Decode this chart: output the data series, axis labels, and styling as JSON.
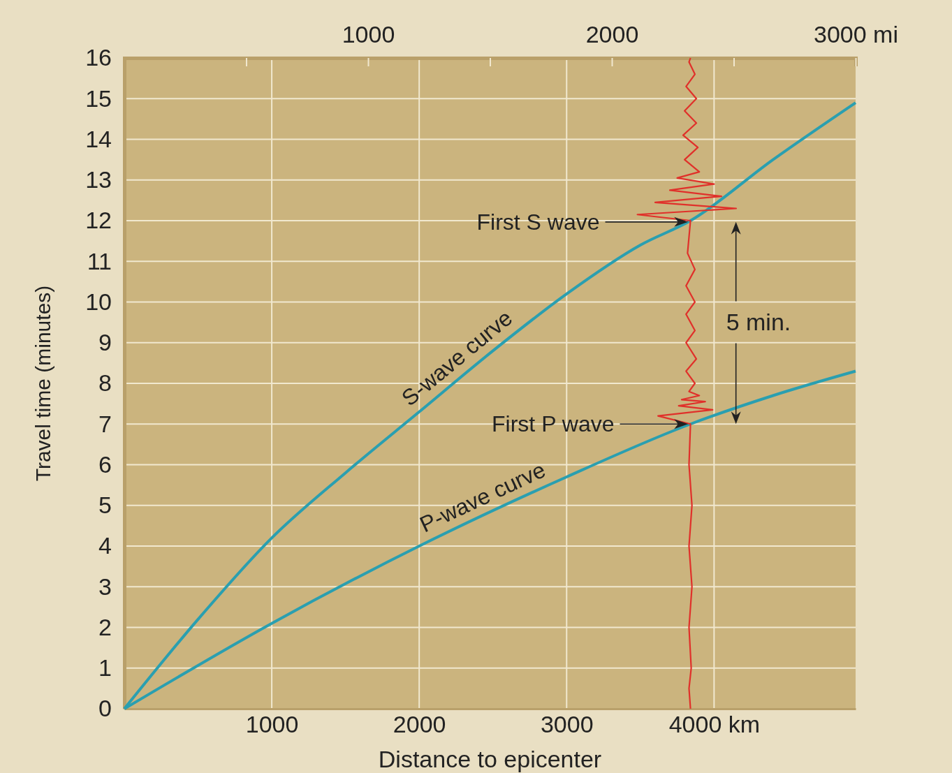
{
  "chart_data": {
    "type": "line",
    "xlabel": "Distance to epicenter",
    "ylabel": "Travel time (minutes)",
    "xlim": [
      0,
      4960
    ],
    "xticks": [
      1000,
      2000,
      3000,
      {
        "value": 4000,
        "label": "4000 km"
      }
    ],
    "x2lim": [
      0,
      3000
    ],
    "x2ticks": [
      {
        "value": 500,
        "label": null
      },
      1000,
      {
        "value": 1500,
        "label": null
      },
      2000,
      {
        "value": 2500,
        "label": null
      },
      {
        "value": 3000,
        "label": "3000 mi"
      }
    ],
    "ylim": [
      0,
      16
    ],
    "yticks": [
      0,
      1,
      2,
      3,
      4,
      5,
      6,
      7,
      8,
      9,
      10,
      11,
      12,
      13,
      14,
      15,
      16
    ],
    "grid": true,
    "marker": "none",
    "line_style": "solid",
    "series": [
      {
        "name": "S-wave curve",
        "color": "#2a9fb0",
        "x": [
          0,
          500,
          1000,
          1500,
          2000,
          2500,
          3000,
          3500,
          3840,
          4400,
          4960
        ],
        "values": [
          0,
          2.2,
          4.2,
          5.8,
          7.3,
          8.8,
          10.2,
          11.4,
          12.0,
          13.5,
          14.9
        ]
      },
      {
        "name": "P-wave curve",
        "color": "#2a9fb0",
        "x": [
          0,
          1000,
          2000,
          3000,
          3840,
          4400,
          4960
        ],
        "values": [
          0,
          2.1,
          4.0,
          5.7,
          7.0,
          7.7,
          8.3
        ]
      },
      {
        "color": "#e0302a",
        "x": [
          3840,
          3830,
          3845,
          3830,
          3850,
          3830,
          3850,
          3830,
          3840,
          3620,
          3990,
          3760,
          3940,
          3780,
          3900,
          3830,
          3870,
          3810,
          3880,
          3810,
          3870,
          3810,
          3870,
          3810,
          3870,
          3820,
          3840,
          3480,
          4150,
          3600,
          4050,
          3700,
          4000,
          3750,
          3900,
          3800,
          3890,
          3790,
          3880,
          3800,
          3880,
          3810,
          3870,
          3830,
          3840
        ],
        "values": [
          0,
          0.5,
          1,
          2,
          3,
          4,
          5,
          6,
          7,
          7.2,
          7.35,
          7.45,
          7.55,
          7.6,
          7.7,
          7.8,
          8,
          8.3,
          8.6,
          9,
          9.3,
          9.7,
          10,
          10.4,
          10.8,
          11.2,
          12,
          12.15,
          12.3,
          12.45,
          12.6,
          12.75,
          12.9,
          13.05,
          13.2,
          13.5,
          13.8,
          14.1,
          14.4,
          14.7,
          15,
          15.3,
          15.6,
          15.9,
          16
        ]
      }
    ],
    "annotations": [
      "First S wave",
      "First P wave",
      "5 min."
    ]
  }
}
